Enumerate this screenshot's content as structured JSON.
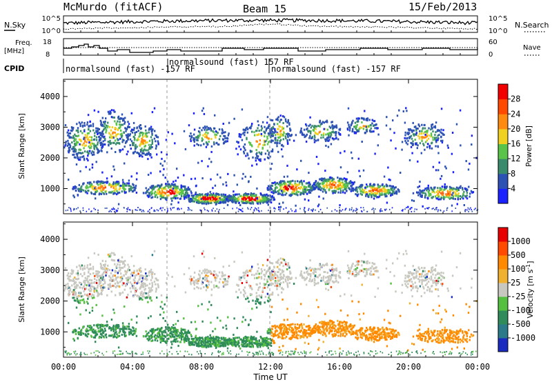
{
  "header": {
    "station": "McMurdo (fitACF)",
    "beam": "Beam 15",
    "date": "15/Feb/2013"
  },
  "top_panels": {
    "nsky_label": "N.Sky",
    "nsearch_label": "N.Search",
    "nsky_ticks": [
      "10^5",
      "10^0"
    ],
    "nsearch_ticks": [
      "10^5",
      "10^0"
    ],
    "freq_label_1": "Freq.",
    "freq_label_2": "[MHz]",
    "freq_ticks": [
      "18",
      "8"
    ],
    "nave_label": "Nave",
    "nave_ticks": [
      "60",
      "0"
    ],
    "cpid_label": "CPID",
    "cpid_segments": [
      "normalsound (fast) -157 RF",
      "normalsound (fast) 157 RF",
      "normalsound (fast) -157 RF"
    ]
  },
  "chart_data": [
    {
      "type": "heatmap",
      "name": "power-panel",
      "ylabel": "Slant Range [km]",
      "ylim": [
        180,
        4560
      ],
      "yticks": [
        "1000",
        "2000",
        "3000",
        "4000"
      ],
      "colorbar_title": "Power [dB]",
      "colorbar_ticks": [
        "4",
        "8",
        "12",
        "16",
        "20",
        "24",
        "28"
      ],
      "colorbar_colors": [
        "#1a22ff",
        "#2c52b4",
        "#3a8b6d",
        "#5ac44a",
        "#f0d020",
        "#ff8a10",
        "#ff4a00",
        "#f20000"
      ]
    },
    {
      "type": "heatmap",
      "name": "velocity-panel",
      "ylabel": "Slant Range [km]",
      "ylim": [
        180,
        4560
      ],
      "yticks": [
        "1000",
        "2000",
        "3000",
        "4000"
      ],
      "colorbar_title": "Velocity [m s-1]",
      "colorbar_ticks": [
        "1000",
        "500",
        "100",
        "25",
        "-25",
        "-100",
        "-500",
        "-1000"
      ],
      "colorbar_colors": [
        "#1a2cc0",
        "#2a7a8a",
        "#2f8c5a",
        "#55c040",
        "#c8c8c0",
        "#f0b030",
        "#ff8a00",
        "#ff4a00",
        "#e80000"
      ]
    }
  ],
  "x_axis": {
    "ticks": [
      "00:00",
      "04:00",
      "08:00",
      "12:00",
      "16:00",
      "20:00",
      "00:00"
    ],
    "label": "Time UT"
  }
}
